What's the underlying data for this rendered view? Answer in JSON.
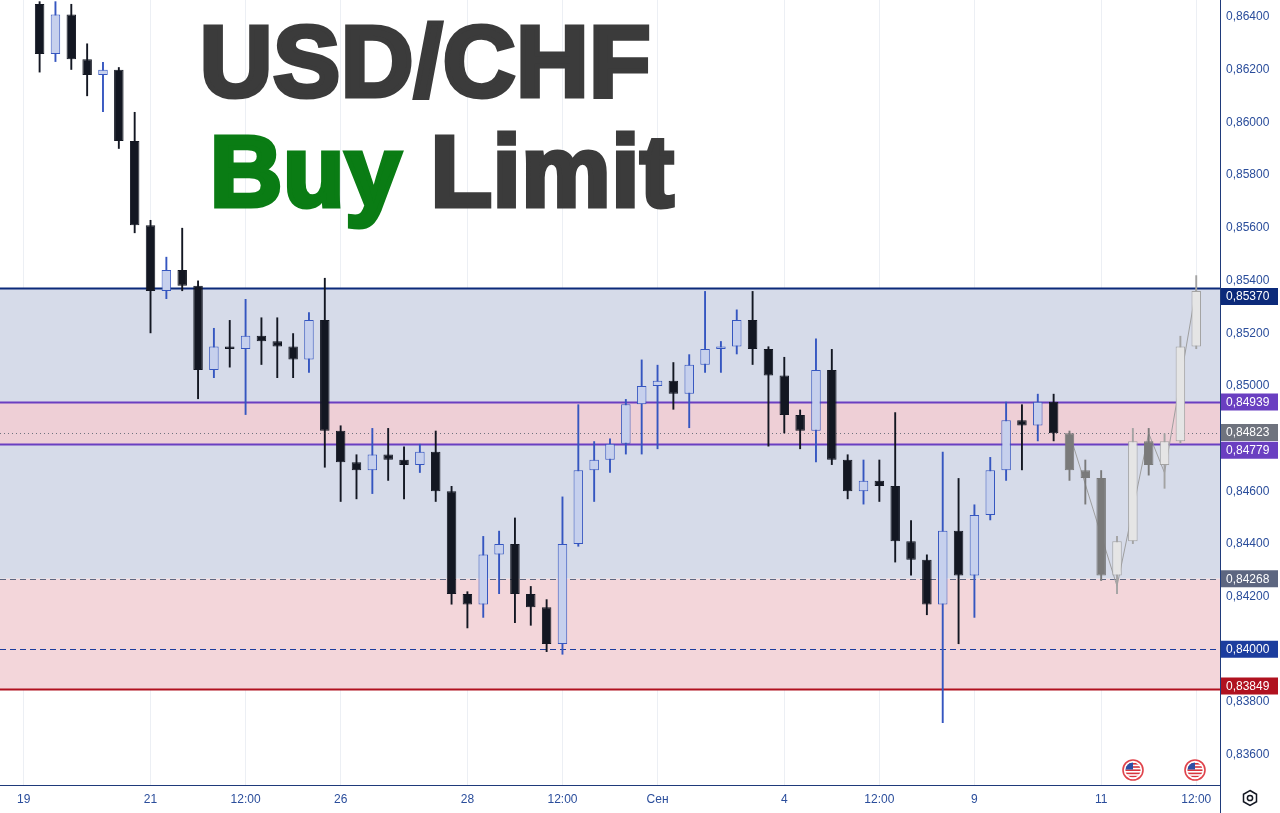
{
  "chart_data": {
    "type": "candlestick",
    "title": "USD/CHF",
    "subtitle": "Buy Limit",
    "categories": [
      null,
      "19",
      null,
      null,
      null,
      null,
      null,
      null,
      null,
      "21",
      null,
      null,
      null,
      null,
      null,
      "12:00",
      null,
      null,
      null,
      null,
      null,
      "26",
      null,
      null,
      null,
      null,
      null,
      null,
      null,
      "28",
      null,
      null,
      null,
      null,
      null,
      "12:00",
      null,
      null,
      null,
      null,
      null,
      "Сен",
      null,
      null,
      null,
      null,
      null,
      null,
      null,
      "4",
      null,
      null,
      null,
      null,
      null,
      "12:00",
      null,
      null,
      null,
      null,
      null,
      "9",
      null,
      null,
      null,
      null,
      null,
      null,
      null,
      "11",
      null,
      null,
      null,
      null,
      null,
      "12:00",
      null
    ],
    "series": [
      {
        "colors": [
          null,
          null,
          "#131722",
          "#3556c0",
          "#131722",
          "#131722",
          "#3556c0",
          "#131722",
          "#131722",
          "#131722",
          "#3556c0",
          "#131722",
          "#131722",
          "#3556c0",
          "#131722",
          "#3556c0",
          "#131722",
          "#131722",
          "#131722",
          "#3556c0",
          "#131722",
          "#131722",
          "#131722",
          "#3556c0",
          "#131722",
          "#131722",
          "#3556c0",
          "#131722",
          "#131722",
          "#131722",
          "#3556c0",
          "#3556c0",
          "#131722",
          "#131722",
          "#131722",
          "#3556c0",
          "#3556c0",
          "#3556c0",
          "#3556c0",
          "#3556c0",
          "#3556c0",
          "#3556c0",
          "#131722",
          "#3556c0",
          "#3556c0",
          "#3556c0",
          "#3556c0",
          "#131722",
          "#131722",
          "#131722",
          "#131722",
          "#3556c0",
          "#131722",
          "#131722",
          "#3556c0",
          "#131722",
          "#131722",
          "#131722",
          "#131722",
          "#3556c0",
          "#131722",
          "#3556c0",
          "#3556c0",
          "#3556c0",
          "#131722",
          "#3556c0",
          "#131722",
          null,
          null,
          null,
          null,
          null,
          null,
          null,
          null,
          null,
          null
        ],
        "ohlc": [
          null,
          null,
          [
            0.8645,
            0.8646,
            0.8619,
            0.8626
          ],
          [
            0.8626,
            0.8646,
            0.8623,
            0.8641
          ],
          [
            0.8641,
            0.8645,
            0.862,
            0.8624
          ],
          [
            0.8624,
            0.863,
            0.861,
            0.8618
          ],
          [
            0.8618,
            0.8623,
            0.8604,
            0.862
          ],
          [
            0.862,
            0.8621,
            0.859,
            0.8593
          ],
          [
            0.8593,
            0.8604,
            0.8558,
            0.8561
          ],
          [
            0.8561,
            0.8563,
            0.852,
            0.8536
          ],
          [
            0.8536,
            0.8549,
            0.8533,
            0.8544
          ],
          [
            0.8544,
            0.856,
            0.8536,
            0.8538
          ],
          [
            0.8538,
            0.854,
            0.8495,
            0.8506
          ],
          [
            0.8506,
            0.8522,
            0.8503,
            0.8515
          ],
          [
            0.8515,
            0.8525,
            0.8507,
            0.8514
          ],
          [
            0.8514,
            0.8533,
            0.8489,
            0.8519
          ],
          [
            0.8519,
            0.8526,
            0.8508,
            0.8517
          ],
          [
            0.8517,
            0.8526,
            0.8503,
            0.8515
          ],
          [
            0.8515,
            0.852,
            0.8503,
            0.851
          ],
          [
            0.851,
            0.8528,
            0.8505,
            0.8525
          ],
          [
            0.8525,
            0.8541,
            0.8469,
            0.8483
          ],
          [
            0.8483,
            0.8485,
            0.8456,
            0.8471
          ],
          [
            0.8471,
            0.8474,
            0.8457,
            0.8468
          ],
          [
            0.8468,
            0.8484,
            0.8459,
            0.8474
          ],
          [
            0.8474,
            0.8484,
            0.8464,
            0.8472
          ],
          [
            0.8472,
            0.8477,
            0.8457,
            0.847
          ],
          [
            0.847,
            0.8478,
            0.8467,
            0.8475
          ],
          [
            0.8475,
            0.8483,
            0.8456,
            0.846
          ],
          [
            0.846,
            0.8462,
            0.8417,
            0.8421
          ],
          [
            0.8421,
            0.8422,
            0.8408,
            0.8417
          ],
          [
            0.8417,
            0.8443,
            0.8412,
            0.8436
          ],
          [
            0.8436,
            0.8445,
            0.8421,
            0.844
          ],
          [
            0.844,
            0.845,
            0.841,
            0.8421
          ],
          [
            0.8421,
            0.8424,
            0.8409,
            0.8416
          ],
          [
            0.8416,
            0.8419,
            0.8399,
            0.8402
          ],
          [
            0.8402,
            0.8458,
            0.8398,
            0.844
          ],
          [
            0.844,
            0.8493,
            0.8439,
            0.8468
          ],
          [
            0.8468,
            0.8479,
            0.8456,
            0.8472
          ],
          [
            0.8472,
            0.848,
            0.8467,
            0.8478
          ],
          [
            0.8478,
            0.8495,
            0.8474,
            0.8493
          ],
          [
            0.8493,
            0.851,
            0.8474,
            0.85
          ],
          [
            0.85,
            0.8508,
            0.8476,
            0.8502
          ],
          [
            0.8502,
            0.8509,
            0.8491,
            0.8497
          ],
          [
            0.8497,
            0.8512,
            0.8484,
            0.8508
          ],
          [
            0.8508,
            0.8536,
            0.8505,
            0.8514
          ],
          [
            0.8514,
            0.8517,
            0.8505,
            0.8515
          ],
          [
            0.8515,
            0.8529,
            0.8512,
            0.8525
          ],
          [
            0.8525,
            0.8536,
            0.8508,
            0.8514
          ],
          [
            0.8514,
            0.8515,
            0.8477,
            0.8504
          ],
          [
            0.8504,
            0.8511,
            0.8482,
            0.8489
          ],
          [
            0.8489,
            0.8491,
            0.8476,
            0.8483
          ],
          [
            0.8483,
            0.8518,
            0.8471,
            0.8506
          ],
          [
            0.8506,
            0.8514,
            0.847,
            0.8472
          ],
          [
            0.8472,
            0.8474,
            0.8457,
            0.846
          ],
          [
            0.846,
            0.8472,
            0.8455,
            0.8464
          ],
          [
            0.8464,
            0.8472,
            0.8456,
            0.8462
          ],
          [
            0.8462,
            0.849,
            0.8433,
            0.8441
          ],
          [
            0.8441,
            0.8449,
            0.8428,
            0.8434
          ],
          [
            0.8434,
            0.8436,
            0.8413,
            0.8417
          ],
          [
            0.8417,
            0.8475,
            0.8372,
            0.8445
          ],
          [
            0.8445,
            0.8465,
            0.8402,
            0.8428
          ],
          [
            0.8428,
            0.8455,
            0.8412,
            0.8451
          ],
          [
            0.8451,
            0.8473,
            0.8449,
            0.8468
          ],
          [
            0.8468,
            0.8494,
            0.8464,
            0.8487
          ],
          [
            0.8487,
            0.8493,
            0.8468,
            0.8485
          ],
          [
            0.8485,
            0.8497,
            0.8479,
            0.8494
          ],
          [
            0.8494,
            0.8497,
            0.8479,
            0.8482
          ],
          null,
          null,
          null,
          null,
          null,
          null,
          null,
          null,
          null,
          null
        ]
      },
      {
        "colors": [
          null,
          null,
          null,
          null,
          null,
          null,
          null,
          null,
          null,
          null,
          null,
          null,
          null,
          null,
          null,
          null,
          null,
          null,
          null,
          null,
          null,
          null,
          null,
          null,
          null,
          null,
          null,
          null,
          null,
          null,
          null,
          null,
          null,
          null,
          null,
          null,
          null,
          null,
          null,
          null,
          null,
          null,
          null,
          null,
          null,
          null,
          null,
          null,
          null,
          null,
          null,
          null,
          null,
          null,
          null,
          null,
          null,
          null,
          null,
          null,
          null,
          null,
          null,
          null,
          null,
          null,
          null,
          "#7a7a7a",
          "#7a7a7a",
          "#7a7a7a",
          "#a3a3a3",
          "#a3a3a3",
          "#7a7a7a",
          "#a3a3a3",
          "#a3a3a3",
          "#a3a3a3",
          null
        ],
        "ohlc": [
          null,
          null,
          null,
          null,
          null,
          null,
          null,
          null,
          null,
          null,
          null,
          null,
          null,
          null,
          null,
          null,
          null,
          null,
          null,
          null,
          null,
          null,
          null,
          null,
          null,
          null,
          null,
          null,
          null,
          null,
          null,
          null,
          null,
          null,
          null,
          null,
          null,
          null,
          null,
          null,
          null,
          null,
          null,
          null,
          null,
          null,
          null,
          null,
          null,
          null,
          null,
          null,
          null,
          null,
          null,
          null,
          null,
          null,
          null,
          null,
          null,
          null,
          null,
          null,
          null,
          null,
          null,
          [
            0.8482,
            0.8483,
            0.8464,
            0.8468
          ],
          [
            0.8468,
            0.8472,
            0.8455,
            0.8465
          ],
          [
            0.8465,
            0.8468,
            0.8426,
            0.8428
          ],
          [
            0.8428,
            0.8443,
            0.8421,
            0.8441
          ],
          [
            0.8441,
            0.8484,
            0.844,
            0.8479
          ],
          [
            0.8479,
            0.8484,
            0.8466,
            0.847
          ],
          [
            0.847,
            0.8482,
            0.8461,
            0.8479
          ],
          [
            0.8479,
            0.8519,
            0.8478,
            0.8515
          ],
          [
            0.8515,
            0.8542,
            0.8514,
            0.8536
          ],
          null
        ]
      },
      {
        "type": "line",
        "color": "#9e9e9e",
        "values": [
          null,
          null,
          null,
          null,
          null,
          null,
          null,
          null,
          null,
          null,
          null,
          null,
          null,
          null,
          null,
          null,
          null,
          null,
          null,
          null,
          null,
          null,
          null,
          null,
          null,
          null,
          null,
          null,
          null,
          null,
          null,
          null,
          null,
          null,
          null,
          null,
          null,
          null,
          null,
          null,
          null,
          null,
          null,
          null,
          null,
          null,
          null,
          null,
          null,
          null,
          null,
          null,
          null,
          null,
          null,
          null,
          null,
          null,
          null,
          null,
          null,
          null,
          null,
          null,
          null,
          null,
          null,
          0.8482,
          null,
          null,
          0.8424,
          null,
          0.8482,
          0.8467,
          null,
          0.8537,
          null
        ]
      }
    ],
    "ylim": [
      0.83485,
      0.86465
    ],
    "yticks": [
      {
        "value": 0.836,
        "label": "0,83600"
      },
      {
        "value": 0.838,
        "label": "0,83800"
      },
      {
        "value": 0.842,
        "label": "0,84200"
      },
      {
        "value": 0.844,
        "label": "0,84400"
      },
      {
        "value": 0.846,
        "label": "0,84600"
      },
      {
        "value": 0.85,
        "label": "0,85000"
      },
      {
        "value": 0.852,
        "label": "0,85200"
      },
      {
        "value": 0.854,
        "label": "0,85400"
      },
      {
        "value": 0.856,
        "label": "0,85600"
      },
      {
        "value": 0.858,
        "label": "0,85800"
      },
      {
        "value": 0.86,
        "label": "0,86000"
      },
      {
        "value": 0.862,
        "label": "0,86200"
      },
      {
        "value": 0.864,
        "label": "0,86400"
      }
    ],
    "grid": "x",
    "bands": [
      {
        "axis": "y",
        "from": 0.84268,
        "to": 0.8537,
        "color": "#d6dbe9"
      },
      {
        "axis": "y",
        "from": 0.83849,
        "to": 0.84268,
        "color": "#f3d6da"
      },
      {
        "axis": "y",
        "from": 0.84779,
        "to": 0.84939,
        "color": "#eecfd6"
      }
    ],
    "ref_lines": [
      {
        "axis": "y",
        "value": 0.8537,
        "label": "0,85370",
        "color": "#0c2a7a",
        "line_style": "solid"
      },
      {
        "axis": "y",
        "value": 0.84939,
        "label": "0,84939",
        "color": "#6a3fc1",
        "line_style": "solid"
      },
      {
        "axis": "y",
        "value": 0.84823,
        "label": "0,84823",
        "color": "#6f737e",
        "line_style": "dotted"
      },
      {
        "axis": "y",
        "value": 0.84779,
        "label": "0,84779",
        "color": "#6a3fc1",
        "line_style": "solid"
      },
      {
        "axis": "y",
        "value": 0.84268,
        "label": "0,84268",
        "color": "#5d6680",
        "line_style": "dashed"
      },
      {
        "axis": "y",
        "value": 0.84,
        "label": "0,84000",
        "color": "#1c3d9e",
        "line_style": "dashed"
      },
      {
        "axis": "y",
        "value": 0.83849,
        "label": "0,83849",
        "color": "#b0111f",
        "line_style": "solid"
      }
    ]
  }
}
